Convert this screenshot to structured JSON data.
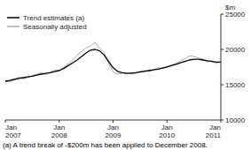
{
  "chart_data": {
    "type": "line",
    "y_label": "$m",
    "footnote": "(a) A trend break of -$200m has been applied to December 2008.",
    "categories": [
      "Jan\n2007",
      null,
      null,
      null,
      null,
      null,
      null,
      null,
      null,
      null,
      null,
      null,
      "Jan\n2008",
      null,
      null,
      null,
      null,
      null,
      null,
      null,
      null,
      null,
      null,
      null,
      "Jan\n2009",
      null,
      null,
      null,
      null,
      null,
      null,
      null,
      null,
      null,
      null,
      null,
      "Jan\n2010",
      null,
      null,
      null,
      null,
      null,
      null,
      null,
      null,
      null,
      null,
      null,
      "Jan\n2011"
    ],
    "series": [
      {
        "name": "Seasonally adjusted",
        "color": "#aaaaaa",
        "values": [
          15500,
          15400,
          15700,
          16100,
          15800,
          16000,
          16300,
          16500,
          16700,
          16400,
          16800,
          17100,
          17000,
          17500,
          18000,
          18500,
          19200,
          19700,
          20200,
          20500,
          21000,
          20200,
          19500,
          18000,
          16800,
          16500,
          16600,
          16700,
          16500,
          16600,
          16900,
          17000,
          16900,
          17100,
          17400,
          17300,
          17600,
          17800,
          18000,
          18400,
          18700,
          19100,
          19000,
          18800,
          18600,
          18200,
          18400,
          18000,
          18300
        ]
      },
      {
        "name": "Trend estimates (a)",
        "color": "#000000",
        "values": [
          15500,
          15600,
          15750,
          15900,
          16000,
          16100,
          16200,
          16350,
          16500,
          16600,
          16700,
          16850,
          17000,
          17300,
          17700,
          18100,
          18500,
          19000,
          19500,
          19900,
          20000,
          19800,
          19200,
          18300,
          17400,
          16900,
          16700,
          16600,
          16650,
          16700,
          16800,
          16900,
          17000,
          17100,
          17200,
          17350,
          17500,
          17700,
          17900,
          18100,
          18300,
          18500,
          18600,
          18600,
          18500,
          18400,
          18300,
          18200,
          18200
        ]
      }
    ],
    "ylim": [
      10000,
      25000
    ],
    "yticks": [
      10000,
      15000,
      20000,
      25000
    ],
    "legend": "upper left"
  }
}
